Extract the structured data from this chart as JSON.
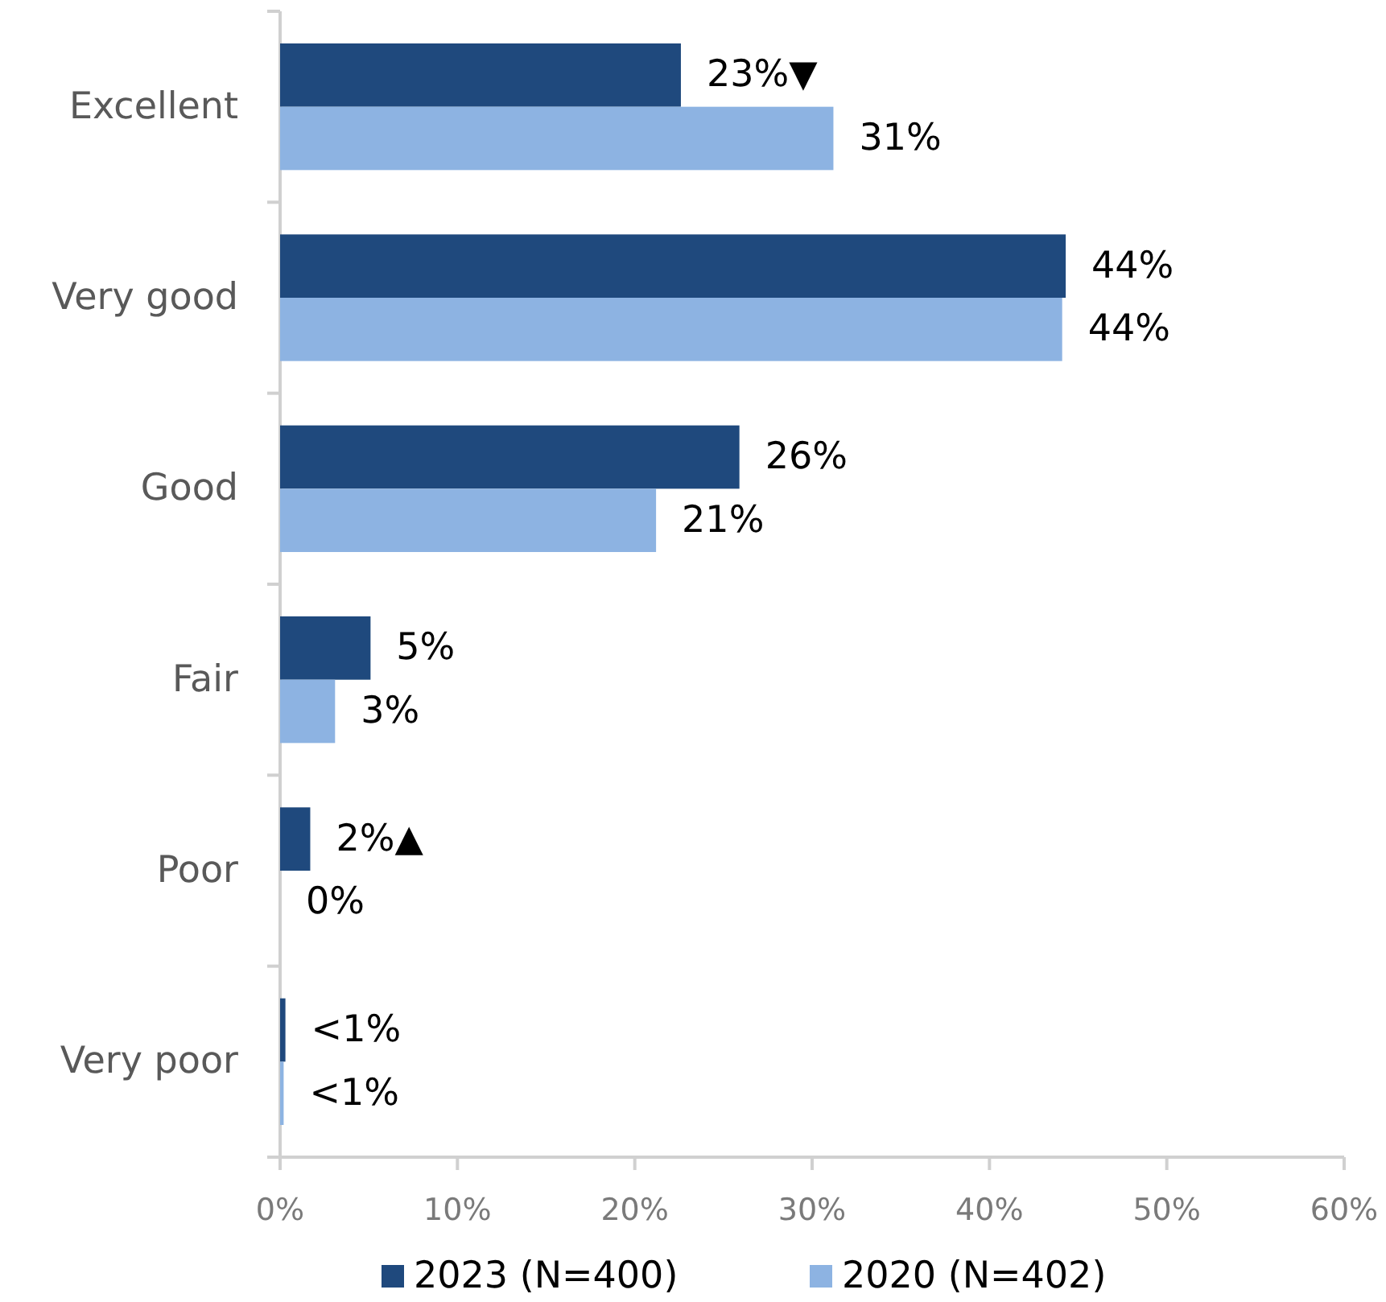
{
  "chart_data": {
    "type": "bar",
    "orientation": "horizontal",
    "categories": [
      "Excellent",
      "Very good",
      "Good",
      "Fair",
      "Poor",
      "Very poor"
    ],
    "series": [
      {
        "name": "2023 (N=400)",
        "color": "#1f497d",
        "values": [
          22.6,
          44.3,
          25.9,
          5.1,
          1.7,
          0.3
        ],
        "value_labels": [
          "23%▼",
          "44%",
          "26%",
          "5%",
          "2%▲",
          "<1%"
        ]
      },
      {
        "name": "2020 (N=402)",
        "color": "#8db3e2",
        "values": [
          31.2,
          44.1,
          21.2,
          3.1,
          0,
          0.2
        ],
        "value_labels": [
          "31%",
          "44%",
          "21%",
          "3%",
          "0%",
          "<1%"
        ]
      }
    ],
    "xlim": [
      0,
      60
    ],
    "xticks": [
      {
        "value": 0,
        "label": "0%"
      },
      {
        "value": 10,
        "label": "10%"
      },
      {
        "value": 20,
        "label": "20%"
      },
      {
        "value": 30,
        "label": "30%"
      },
      {
        "value": 40,
        "label": "40%"
      },
      {
        "value": 50,
        "label": "50%"
      },
      {
        "value": 60,
        "label": "60%"
      }
    ],
    "legend": "bottom"
  }
}
